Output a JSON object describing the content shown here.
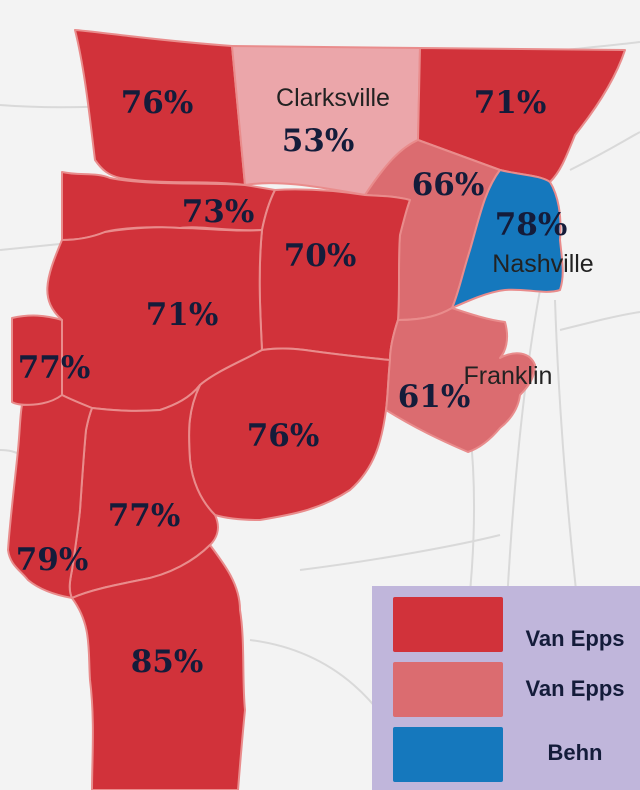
{
  "colors": {
    "background": "#f3f3f3",
    "road": "#d9d9d9",
    "county_border": "#e98c8c",
    "strong_van_epps": "#d1323a",
    "moderate_van_epps": "#db6c70",
    "light_van_epps": "#eba6aa",
    "behn": "#1578bd",
    "legend_bg": "#c0b6db"
  },
  "counties": [
    {
      "name": "northwest-county",
      "pct": "76%",
      "fill": "strong_van_epps"
    },
    {
      "name": "montgomery-county",
      "pct": "53%",
      "fill": "light_van_epps"
    },
    {
      "name": "northeast-county",
      "pct": "71%",
      "fill": "strong_van_epps"
    },
    {
      "name": "cheatham-county",
      "pct": "66%",
      "fill": "moderate_van_epps"
    },
    {
      "name": "davidson-county",
      "pct": "78%",
      "fill": "behn"
    },
    {
      "name": "north-central-county",
      "pct": "73%",
      "fill": "strong_van_epps"
    },
    {
      "name": "dickson-county",
      "pct": "70%",
      "fill": "strong_van_epps"
    },
    {
      "name": "central-county",
      "pct": "71%",
      "fill": "strong_van_epps"
    },
    {
      "name": "west-county",
      "pct": "77%",
      "fill": "strong_van_epps"
    },
    {
      "name": "hickman-county",
      "pct": "76%",
      "fill": "strong_van_epps"
    },
    {
      "name": "williamson-county",
      "pct": "61%",
      "fill": "moderate_van_epps"
    },
    {
      "name": "south-central-county",
      "pct": "77%",
      "fill": "strong_van_epps"
    },
    {
      "name": "southwest-county",
      "pct": "79%",
      "fill": "strong_van_epps"
    },
    {
      "name": "south-county",
      "pct": "85%",
      "fill": "strong_van_epps"
    }
  ],
  "cities": {
    "clarksville": "Clarksville",
    "nashville": "Nashville",
    "franklin": "Franklin"
  },
  "legend": [
    {
      "label": "Van Epps",
      "color": "strong_van_epps"
    },
    {
      "label": "Van Epps",
      "color": "moderate_van_epps"
    },
    {
      "label": "Behn",
      "color": "behn"
    }
  ]
}
